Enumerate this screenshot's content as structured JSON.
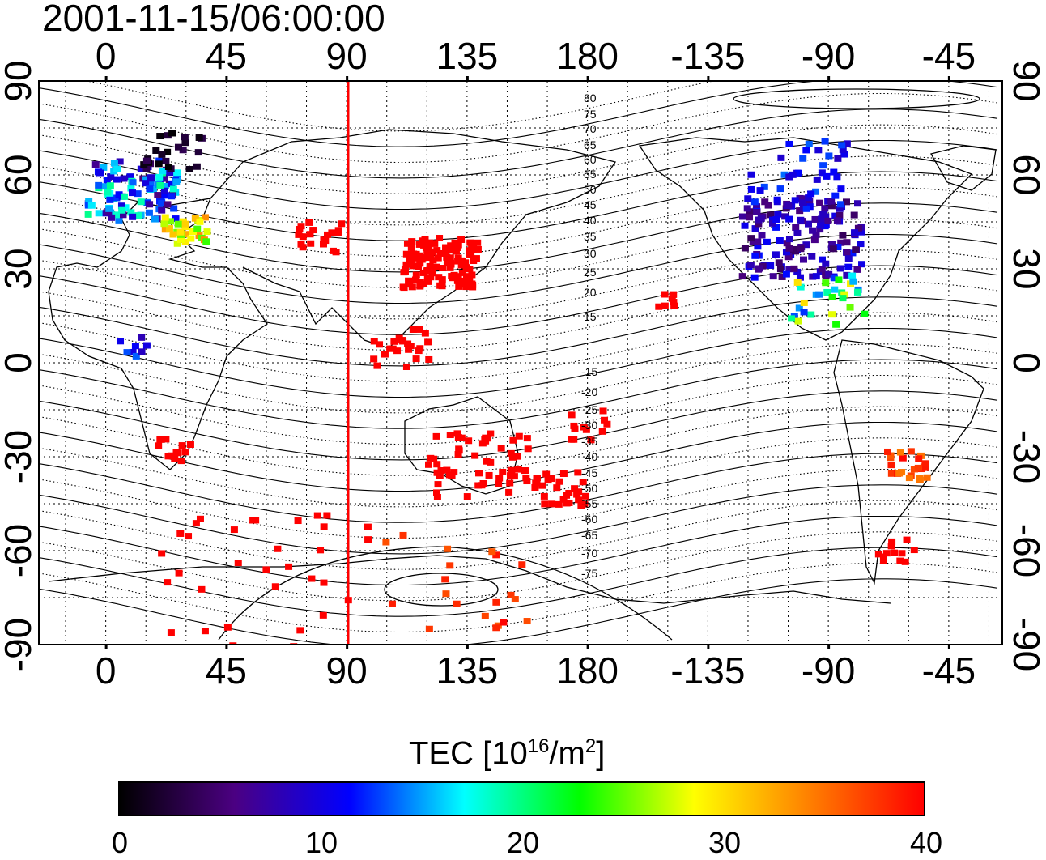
{
  "title": "2001-11-15/06:00:00",
  "map": {
    "lon_ticks_top": [
      "0",
      "45",
      "90",
      "135",
      "180",
      "-135",
      "-90",
      "-45"
    ],
    "lon_ticks_bottom": [
      "0",
      "45",
      "90",
      "135",
      "180",
      "-135",
      "-90",
      "-45"
    ],
    "lat_ticks_left": [
      "90",
      "60",
      "30",
      "0",
      "-30",
      "-60",
      "-90"
    ],
    "lat_ticks_right": [
      "90",
      "60",
      "30",
      "0",
      "-30",
      "-60",
      "-90"
    ],
    "magnetic_latitude_labels_north": [
      "80",
      "75",
      "70",
      "65",
      "60",
      "55",
      "50",
      "45",
      "40",
      "35",
      "30",
      "25",
      "20",
      "15"
    ],
    "magnetic_latitude_labels_south": [
      "-15",
      "-20",
      "-25",
      "-30",
      "-35",
      "-40",
      "-45",
      "-50",
      "-55",
      "-60",
      "-65",
      "-70",
      "-75"
    ],
    "subsolar_longitude": 90,
    "subsolar_line_color": "#ff0000",
    "grid": "dotted"
  },
  "colorbar": {
    "title_main": "TEC  [10",
    "title_exp1": "16",
    "title_mid": "/m",
    "title_exp2": "2",
    "title_end": "]",
    "ticks": [
      "0",
      "10",
      "20",
      "30",
      "40"
    ],
    "range": [
      0,
      40
    ],
    "colors": [
      "#000000",
      "#4b0082",
      "#0000ff",
      "#00ffff",
      "#00ff00",
      "#ffff00",
      "#ff8000",
      "#ff0000"
    ]
  }
}
